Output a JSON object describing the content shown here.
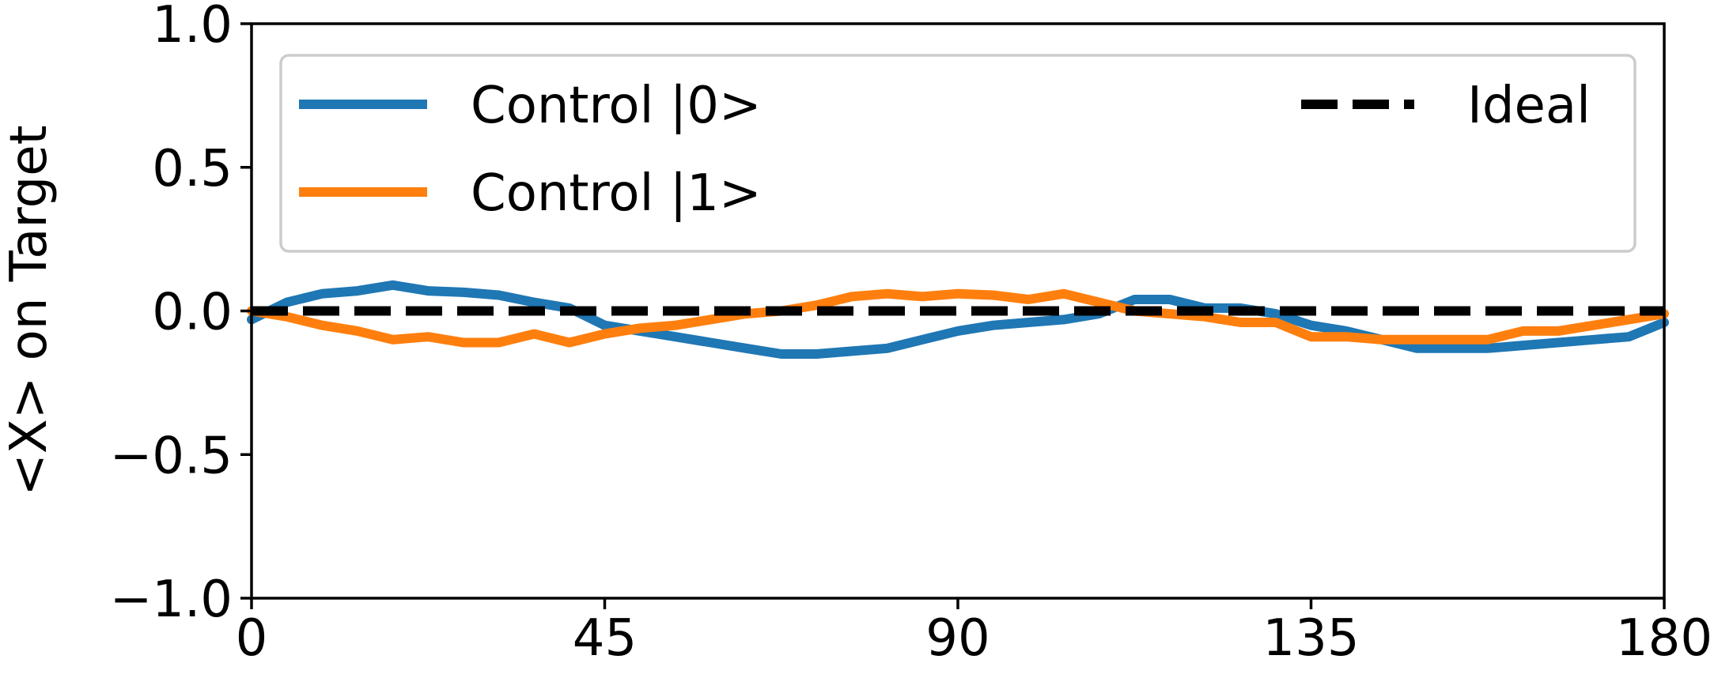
{
  "chart_data": {
    "type": "line",
    "title": "",
    "xlabel": "",
    "ylabel": "<X> on Target",
    "xlim": [
      0,
      180
    ],
    "ylim": [
      -1.0,
      1.0
    ],
    "x_ticks": [
      0,
      45,
      90,
      135,
      180
    ],
    "x_tick_labels": [
      "0",
      "45",
      "90",
      "135",
      "180"
    ],
    "y_ticks": [
      1.0,
      0.5,
      0.0,
      -0.5,
      -1.0
    ],
    "y_tick_labels": [
      "1.0",
      "0.5",
      "0.0",
      "−0.5",
      "−1.0"
    ],
    "grid": false,
    "legend_position": "top",
    "series": [
      {
        "name": "Control |0>",
        "color": "#1f77b4",
        "style": "solid",
        "x": [
          0,
          4.5,
          9,
          13.5,
          18,
          22.5,
          27,
          31.5,
          36,
          40.5,
          45,
          49.5,
          54,
          58.5,
          63,
          67.5,
          72,
          76.5,
          81,
          85.5,
          90,
          94.5,
          99,
          103.5,
          108,
          112.5,
          117,
          121.5,
          126,
          130.5,
          135,
          139.5,
          144,
          148.5,
          153,
          157.5,
          162,
          166.5,
          171,
          175.5,
          180
        ],
        "values": [
          -0.03,
          0.03,
          0.06,
          0.07,
          0.09,
          0.07,
          0.065,
          0.055,
          0.03,
          0.01,
          -0.05,
          -0.07,
          -0.09,
          -0.11,
          -0.13,
          -0.15,
          -0.15,
          -0.14,
          -0.13,
          -0.1,
          -0.07,
          -0.05,
          -0.04,
          -0.03,
          -0.01,
          0.04,
          0.04,
          0.01,
          0.01,
          -0.01,
          -0.05,
          -0.07,
          -0.1,
          -0.13,
          -0.13,
          -0.13,
          -0.12,
          -0.11,
          -0.1,
          -0.09,
          -0.04
        ]
      },
      {
        "name": "Control |1>",
        "color": "#ff7f0e",
        "style": "solid",
        "x": [
          0,
          4.5,
          9,
          13.5,
          18,
          22.5,
          27,
          31.5,
          36,
          40.5,
          45,
          49.5,
          54,
          58.5,
          63,
          67.5,
          72,
          76.5,
          81,
          85.5,
          90,
          94.5,
          99,
          103.5,
          108,
          112.5,
          117,
          121.5,
          126,
          130.5,
          135,
          139.5,
          144,
          148.5,
          153,
          157.5,
          162,
          166.5,
          171,
          175.5,
          180
        ],
        "values": [
          0.0,
          -0.02,
          -0.05,
          -0.07,
          -0.1,
          -0.09,
          -0.11,
          -0.11,
          -0.08,
          -0.11,
          -0.08,
          -0.06,
          -0.05,
          -0.03,
          -0.01,
          0.0,
          0.02,
          0.05,
          0.06,
          0.05,
          0.06,
          0.055,
          0.04,
          0.06,
          0.03,
          0.0,
          -0.01,
          -0.02,
          -0.04,
          -0.04,
          -0.09,
          -0.09,
          -0.1,
          -0.1,
          -0.1,
          -0.1,
          -0.07,
          -0.07,
          -0.05,
          -0.03,
          -0.01
        ]
      },
      {
        "name": "Ideal",
        "color": "#000000",
        "style": "dashed",
        "x": [
          0,
          180
        ],
        "values": [
          0.0,
          0.0
        ]
      }
    ]
  }
}
